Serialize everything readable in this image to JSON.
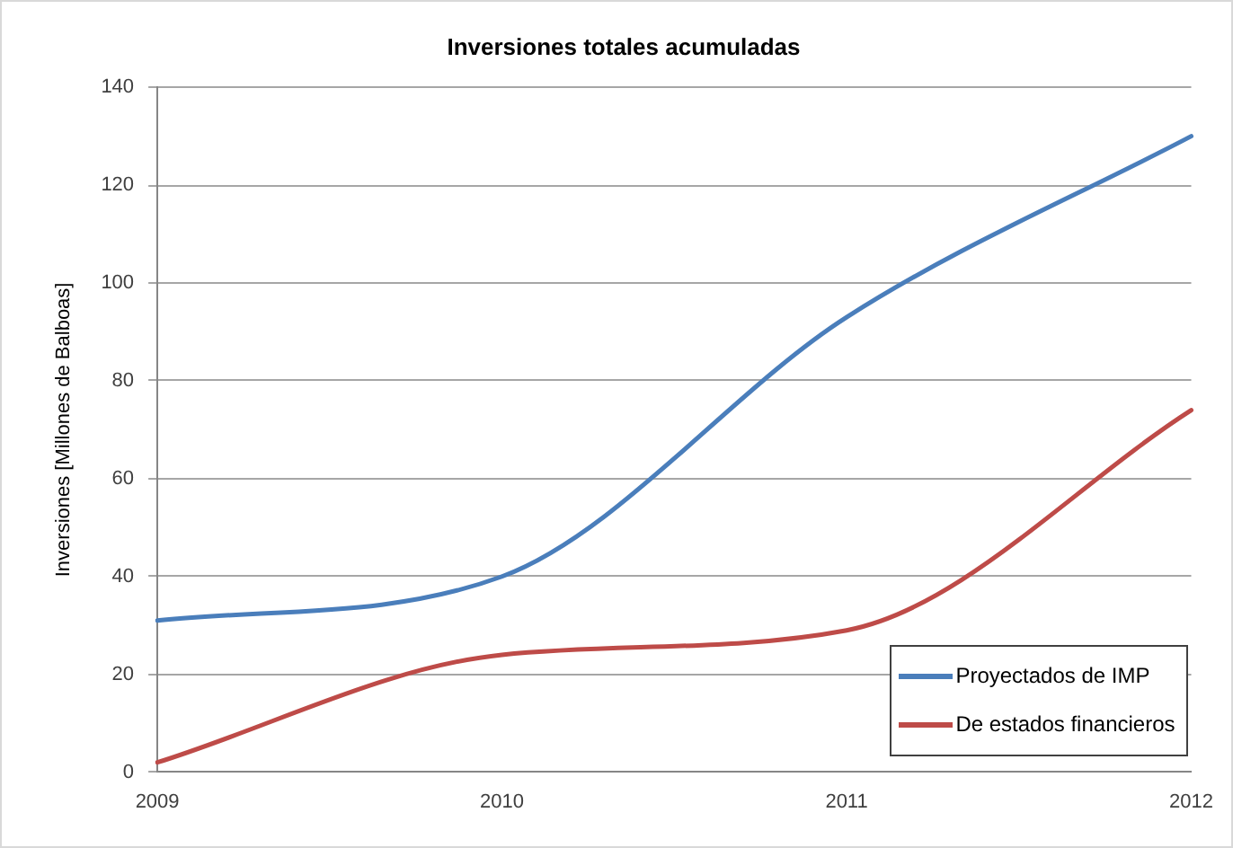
{
  "chart_data": {
    "type": "line",
    "title": "Inversiones totales acumuladas",
    "ylabel": "Inversiones [Millones de Balboas]",
    "categories": [
      "2009",
      "2010",
      "2011",
      "2012"
    ],
    "series": [
      {
        "name": "Proyectados de IMP",
        "color": "#4a7ebb",
        "values": [
          31,
          40,
          93,
          130
        ]
      },
      {
        "name": "De estados financieros",
        "color": "#be4b48",
        "values": [
          2,
          24,
          29,
          74
        ]
      }
    ],
    "ylim": [
      0,
      140
    ],
    "yticks": [
      0,
      20,
      40,
      60,
      80,
      100,
      120,
      140
    ],
    "grid": "y",
    "legend": "bottom right",
    "marker": "none",
    "line_style": "solid"
  }
}
